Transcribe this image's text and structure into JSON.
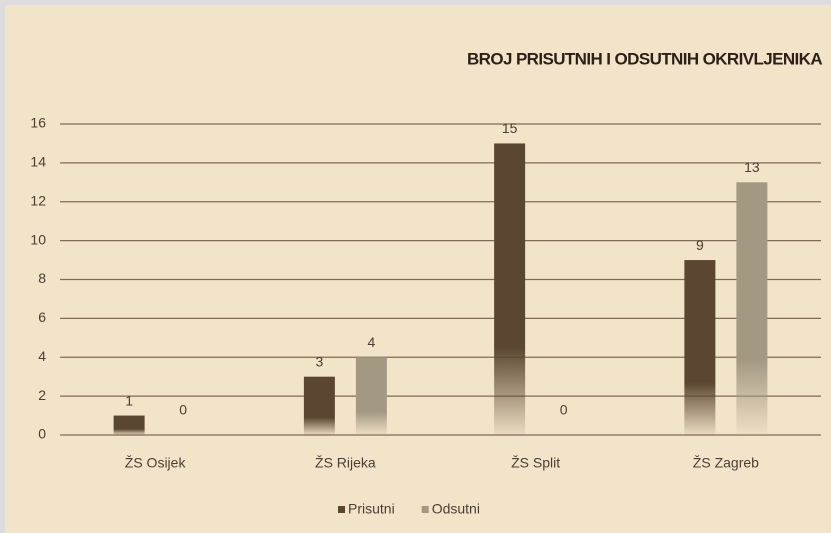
{
  "chart_data": {
    "type": "bar",
    "title": "BROJ PRISUTNIH I ODSUTNIH OKRIVLJENIKA",
    "categories": [
      "ŽS Osijek",
      "ŽS Rijeka",
      "ŽS Split",
      "ŽS Zagreb"
    ],
    "series": [
      {
        "name": "Prisutni",
        "color": "#5b4731",
        "values": [
          1,
          3,
          15,
          9
        ]
      },
      {
        "name": "Odsutni",
        "color": "#a39882",
        "values": [
          0,
          4,
          0,
          13
        ]
      }
    ],
    "ylim": [
      0,
      16
    ],
    "yticks": [
      0,
      2,
      4,
      6,
      8,
      10,
      12,
      14,
      16
    ],
    "grid": true,
    "legend": "bottom"
  }
}
